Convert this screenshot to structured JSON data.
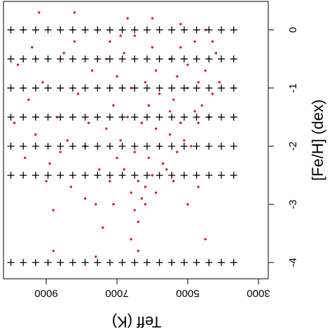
{
  "chart_data": {
    "type": "scatter",
    "x_label": "Teff (K)",
    "y_label": "[Fe/H] (dex)",
    "xlim": [
      10208,
      2723
    ],
    "ylim": [
      0.49,
      -4.28
    ],
    "xticks": [
      9000,
      7000,
      5000,
      3000
    ],
    "yticks": [
      0,
      -1,
      -2,
      -3,
      -4
    ],
    "color": "#e3191c",
    "x": [
      7200,
      6800,
      6500,
      6000,
      5500,
      5000,
      4500,
      4200,
      4100,
      7000,
      6600,
      6200,
      5800,
      5400,
      5000,
      4600,
      4300,
      7100,
      6700,
      6300,
      5900,
      5500,
      5100,
      4700,
      4400,
      6900,
      6500,
      6100,
      5700,
      5300,
      4900,
      6800,
      6400,
      6000,
      5600,
      6600,
      6300,
      6500,
      6400,
      6200,
      7300,
      6900,
      5200,
      4800,
      4300,
      5900,
      5300,
      4700,
      7300,
      7000,
      5500,
      6100,
      5800,
      5200,
      4800,
      6700,
      6000,
      5200,
      4500,
      6200,
      5900,
      5400,
      7200,
      7100,
      9800,
      9500,
      9300,
      9100,
      8900,
      8700,
      8500,
      8300,
      8100,
      7900,
      7700,
      7600,
      7800,
      8600,
      9000,
      9600,
      8200,
      7500,
      7400,
      8800,
      9400,
      8400,
      7900,
      9900,
      5000,
      4700,
      6600,
      8800,
      7600,
      9200,
      8200,
      6400,
      4500
    ],
    "y": [
      -0.2,
      -0.4,
      -0.1,
      -0.3,
      -0.5,
      -0.6,
      -0.7,
      -0.4,
      -0.9,
      -0.8,
      -1.0,
      -0.9,
      -1.1,
      -1.2,
      -1.0,
      -1.3,
      -1.1,
      -1.3,
      -1.5,
      -1.6,
      -1.7,
      -1.8,
      -1.9,
      -1.6,
      -1.5,
      -1.9,
      -2.1,
      -2.2,
      -2.3,
      -2.1,
      -2.0,
      -2.4,
      -2.6,
      -2.5,
      -2.4,
      -2.8,
      -2.9,
      -3.1,
      -3.3,
      -3.0,
      -0.5,
      -0.1,
      -0.3,
      -0.2,
      -0.2,
      -0.7,
      -0.8,
      -0.9,
      -1.7,
      -2.2,
      -1.4,
      -1.3,
      -2.0,
      -1.6,
      -1.4,
      0.2,
      0.2,
      0.1,
      0.0,
      -2.7,
      -2.8,
      -2.6,
      -2.6,
      -3.0,
      -0.6,
      -1.2,
      -1.8,
      -0.9,
      -2.3,
      -1.5,
      -0.4,
      -2.7,
      -1.1,
      -2.0,
      -0.7,
      -3.0,
      -1.6,
      -2.1,
      -2.6,
      -2.2,
      -0.2,
      -2.4,
      -3.4,
      -3.1,
      -0.3,
      -1.9,
      -2.9,
      -1.6,
      -3.0,
      -2.7,
      -3.6,
      -3.8,
      -3.9,
      0.3,
      0.3,
      -3.8,
      -3.6
    ],
    "model_grid": {
      "teff": [
        10000,
        9650,
        9300,
        8950,
        8600,
        8250,
        7900,
        7550,
        7200,
        6850,
        6500,
        6150,
        5800,
        5450,
        5100,
        4750,
        4400,
        4050,
        3700
      ],
      "feh": [
        0,
        -0.5,
        -1,
        -1.5,
        -2,
        -2.5,
        -4
      ]
    }
  }
}
